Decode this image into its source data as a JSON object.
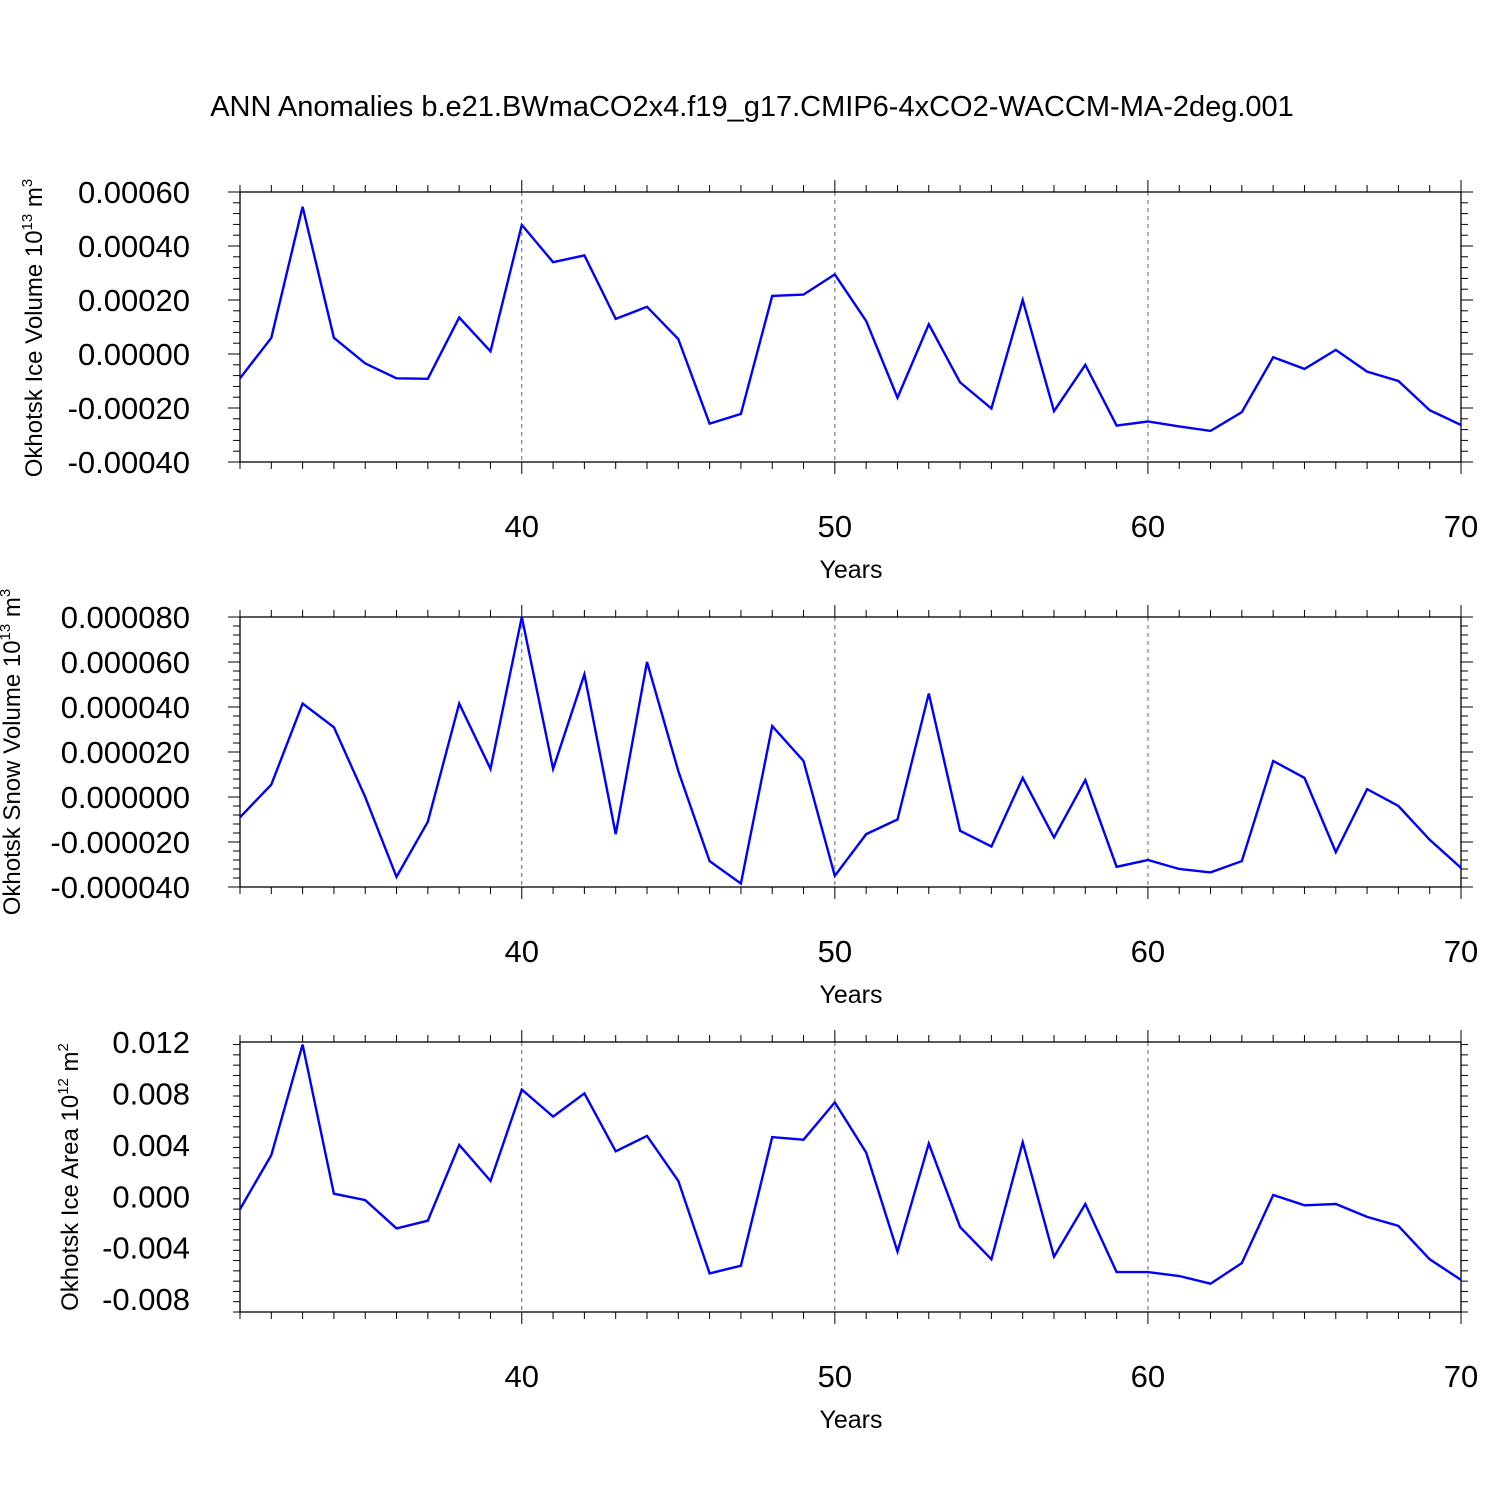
{
  "title": "ANN Anomalies b.e21.BWmaCO2x4.f19_g17.CMIP6-4xCO2-WACCM-MA-2deg.001",
  "line_color": "#0000ff",
  "chart_data": [
    {
      "type": "line",
      "ylabel_main": "Okhotsk Ice Volume 10",
      "ylabel_exp": "13",
      "ylabel_unit": " m",
      "ylabel_unit_exp": "3",
      "xlabel": "Years",
      "xlim": [
        31,
        70
      ],
      "ylim": [
        -0.0004,
        0.0006
      ],
      "yticks": [
        -0.0004,
        -0.0002,
        0.0,
        0.0002,
        0.0004,
        0.0006
      ],
      "ytick_labels": [
        "-0.00040",
        "-0.00020",
        "0.00000",
        "0.00020",
        "0.00040",
        "0.00060"
      ],
      "xticks": [
        40,
        50,
        60,
        70
      ],
      "xtick_labels": [
        "40",
        "50",
        "60",
        "70"
      ],
      "x": [
        31,
        32,
        33,
        34,
        35,
        36,
        37,
        38,
        39,
        40,
        41,
        42,
        43,
        44,
        45,
        46,
        47,
        48,
        49,
        50,
        51,
        52,
        53,
        54,
        55,
        56,
        57,
        58,
        59,
        60,
        61,
        62,
        63,
        64,
        65,
        66,
        67,
        68,
        69,
        70
      ],
      "y": [
        -9e-05,
        6e-05,
        0.000545,
        6e-05,
        -3.5e-05,
        -9e-05,
        -9.2e-05,
        0.000135,
        1e-05,
        0.000478,
        0.00034,
        0.000365,
        0.00013,
        0.000175,
        5.5e-05,
        -0.000258,
        -0.000222,
        0.000215,
        0.00022,
        0.000295,
        0.000122,
        -0.000162,
        0.00011,
        -0.000105,
        -0.000202,
        0.0002,
        -0.000212,
        -4e-05,
        -0.000265,
        -0.00025,
        -0.000268,
        -0.000285,
        -0.000215,
        -1.2e-05,
        -5.5e-05,
        1.5e-05,
        -6.5e-05,
        -0.0001,
        -0.000208,
        -0.000263
      ]
    },
    {
      "type": "line",
      "ylabel_main": "Okhotsk Snow Volume 10",
      "ylabel_exp": "13",
      "ylabel_unit": " m",
      "ylabel_unit_exp": "3",
      "xlabel": "Years",
      "xlim": [
        31,
        70
      ],
      "ylim": [
        -4e-05,
        8e-05
      ],
      "yticks": [
        -4e-05,
        -2e-05,
        0.0,
        2e-05,
        4e-05,
        6e-05,
        8e-05
      ],
      "ytick_labels": [
        "-0.000040",
        "-0.000020",
        "0.000000",
        "0.000020",
        "0.000040",
        "0.000060",
        "0.000080"
      ],
      "xticks": [
        40,
        50,
        60,
        70
      ],
      "xtick_labels": [
        "40",
        "50",
        "60",
        "70"
      ],
      "x": [
        31,
        32,
        33,
        34,
        35,
        36,
        37,
        38,
        39,
        40,
        41,
        42,
        43,
        44,
        45,
        46,
        47,
        48,
        49,
        50,
        51,
        52,
        53,
        54,
        55,
        56,
        57,
        58,
        59,
        60,
        61,
        62,
        63,
        64,
        65,
        66,
        67,
        68,
        69,
        70
      ],
      "y": [
        -9e-06,
        5.5e-06,
        4.15e-05,
        3.1e-05,
        0.0,
        -3.55e-05,
        -1.1e-05,
        4.15e-05,
        1.25e-05,
        8e-05,
        1.25e-05,
        5.45e-05,
        -1.65e-05,
        6e-05,
        1.15e-05,
        -2.85e-05,
        -3.85e-05,
        3.15e-05,
        1.6e-05,
        -3.5e-05,
        -1.65e-05,
        -1e-05,
        4.6e-05,
        -1.5e-05,
        -2.2e-05,
        8.5e-06,
        -1.8e-05,
        7.5e-06,
        -3.1e-05,
        -2.8e-05,
        -3.2e-05,
        -3.35e-05,
        -2.85e-05,
        1.6e-05,
        8.5e-06,
        -2.45e-05,
        3.5e-06,
        -4e-06,
        -1.9e-05,
        -3.15e-05
      ]
    },
    {
      "type": "line",
      "ylabel_main": "Okhotsk Ice Area 10",
      "ylabel_exp": "12",
      "ylabel_unit": " m",
      "ylabel_unit_exp": "2",
      "xlabel": "Years",
      "xlim": [
        31,
        70
      ],
      "ylim": [
        -0.009,
        0.012
      ],
      "yticks": [
        -0.008,
        -0.004,
        0.0,
        0.004,
        0.008,
        0.012
      ],
      "ytick_labels": [
        "-0.008",
        "-0.004",
        "0.000",
        "0.004",
        "0.008",
        "0.012"
      ],
      "xticks": [
        40,
        50,
        60,
        70
      ],
      "xtick_labels": [
        "40",
        "50",
        "60",
        "70"
      ],
      "x": [
        31,
        32,
        33,
        34,
        35,
        36,
        37,
        38,
        39,
        40,
        41,
        42,
        43,
        44,
        45,
        46,
        47,
        48,
        49,
        50,
        51,
        52,
        53,
        54,
        55,
        56,
        57,
        58,
        59,
        60,
        61,
        62,
        63,
        64,
        65,
        66,
        67,
        68,
        69,
        70
      ],
      "y": [
        -0.001,
        0.0032,
        0.0118,
        0.0002,
        -0.0003,
        -0.0025,
        -0.0019,
        0.004,
        0.0012,
        0.0083,
        0.0062,
        0.008,
        0.0035,
        0.0047,
        0.0012,
        -0.006,
        -0.0054,
        0.0046,
        0.0044,
        0.0073,
        0.0034,
        -0.0043,
        0.0041,
        -0.0024,
        -0.0049,
        0.0042,
        -0.0047,
        -0.0006,
        -0.0059,
        -0.0059,
        -0.0062,
        -0.0068,
        -0.0052,
        0.0001,
        -0.0007,
        -0.0006,
        -0.0016,
        -0.0023,
        -0.0049,
        -0.0065
      ]
    }
  ]
}
